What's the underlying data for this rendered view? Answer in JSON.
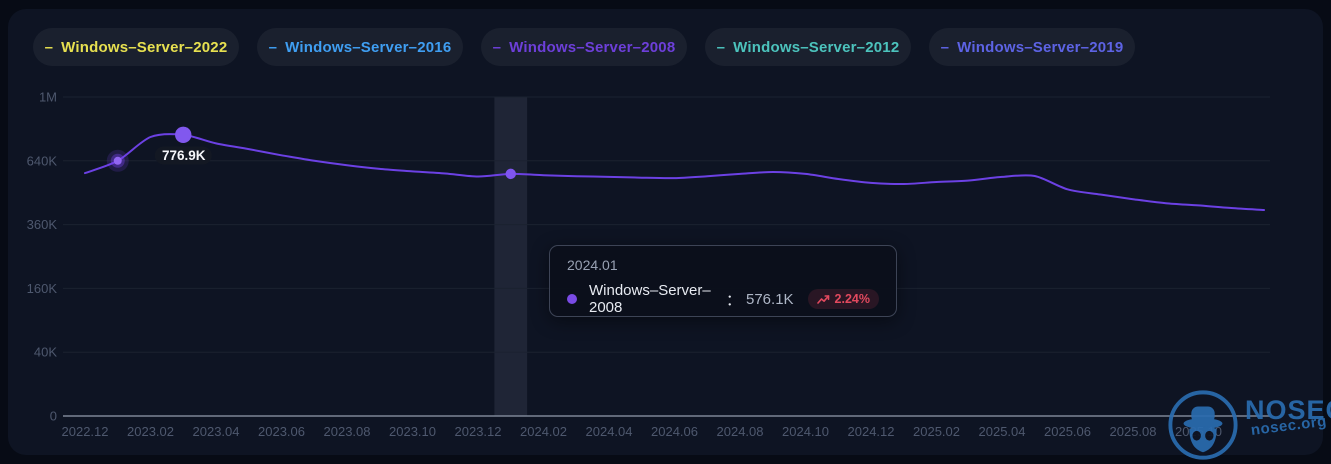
{
  "legend": {
    "marker": "–",
    "items": [
      {
        "label": "Windows–Server–2022",
        "color": "#e7e050"
      },
      {
        "label": "Windows–Server–2016",
        "color": "#3f9ef2"
      },
      {
        "label": "Windows–Server–2008",
        "color": "#6d3fd9"
      },
      {
        "label": "Windows–Server–2012",
        "color": "#4cc3bd"
      },
      {
        "label": "Windows–Server–2019",
        "color": "#5d63e4"
      }
    ]
  },
  "chart_data": {
    "type": "line",
    "title": "",
    "xlabel": "",
    "ylabel": "",
    "unit": "hosts",
    "y_scale": "sqrt",
    "ylim": [
      0,
      1000000
    ],
    "grid": "horizontal-only",
    "legend_position": "top",
    "y_ticks": [
      {
        "label": "0",
        "value": 0
      },
      {
        "label": "40K",
        "value": 40000
      },
      {
        "label": "160K",
        "value": 160000
      },
      {
        "label": "360K",
        "value": 360000
      },
      {
        "label": "640K",
        "value": 640000
      },
      {
        "label": "1M",
        "value": 1000000
      }
    ],
    "x_tick_labels": [
      "2022.12",
      "2023.02",
      "2023.04",
      "2023.06",
      "2023.08",
      "2023.10",
      "2023.12",
      "2024.02",
      "2024.04",
      "2024.06",
      "2024.08",
      "2024.10",
      "2024.12",
      "2025.02",
      "2025.04",
      "2025.06",
      "2025.08",
      "2025.10"
    ],
    "months": [
      "2022.12",
      "2023.01",
      "2023.02",
      "2023.03",
      "2023.04",
      "2023.05",
      "2023.06",
      "2023.07",
      "2023.08",
      "2023.09",
      "2023.10",
      "2023.11",
      "2023.12",
      "2024.01",
      "2024.02",
      "2024.03",
      "2024.04",
      "2024.05",
      "2024.06",
      "2024.07",
      "2024.08",
      "2024.09",
      "2024.10",
      "2024.11",
      "2024.12",
      "2025.01",
      "2025.02",
      "2025.03",
      "2025.04",
      "2025.05",
      "2025.06",
      "2025.07",
      "2025.08",
      "2025.09",
      "2025.10",
      "2025.11",
      "2025.12"
    ],
    "series": [
      {
        "name": "Windows–Server–2008",
        "color": "#6c41e4",
        "dot_color": "#8055ee",
        "values_K": [
          580,
          640,
          765,
          776.9,
          730,
          700,
          668,
          640,
          618,
          600,
          588,
          578,
          563.5,
          576.1,
          570,
          565,
          562,
          558,
          556,
          565,
          576,
          585,
          576,
          552,
          534,
          529,
          538,
          545,
          562,
          566,
          505,
          482,
          462,
          445,
          436,
          425,
          417
        ]
      }
    ],
    "annotations": {
      "max_point": {
        "month": "2023.03",
        "value_K": 776.9,
        "label": "776.9K"
      },
      "glow_point": {
        "month": "2023.01",
        "value_K": 640
      },
      "hover_point": {
        "month": "2024.01",
        "value_K": 576.1,
        "highlight_band": true
      }
    }
  },
  "tooltip": {
    "title": "2024.01",
    "series_name": "Windows–Server–2008",
    "colon": "：",
    "value": "576.1K",
    "change": "2.24%",
    "trend": "up",
    "accent_color": "#e2495e",
    "dot_color": "#7a4be5"
  },
  "watermark": {
    "name": "NOSEC",
    "url": "nosec.org",
    "color": "#2a6cb0"
  }
}
